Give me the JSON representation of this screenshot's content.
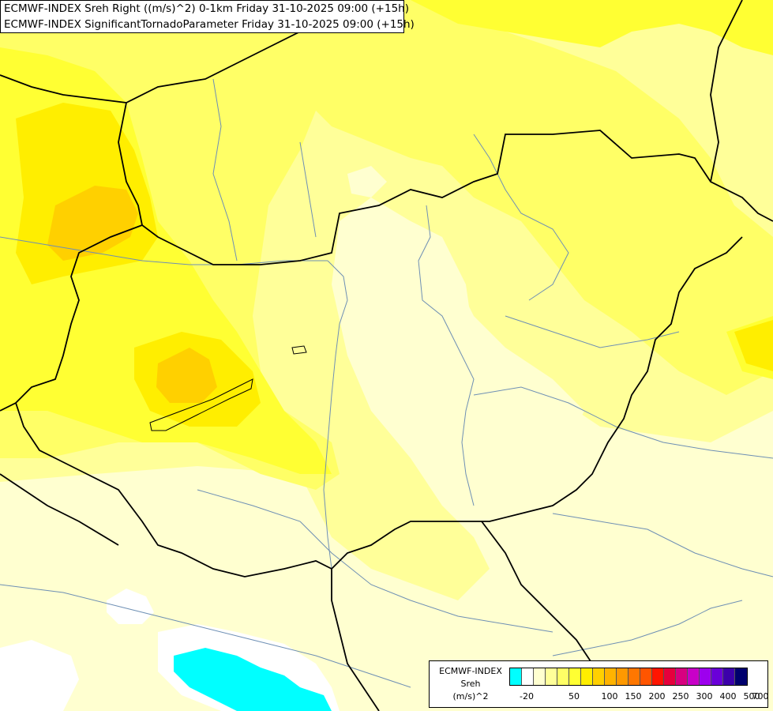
{
  "title": {
    "line1": "ECMWF-INDEX Sreh Right ((m/s)^2) 0-1km Friday 31-10-2025 09:00 (+15h)",
    "line2": "ECMWF-INDEX SignificantTornadoParameter Friday 31-10-2025 09:00 (+15h)"
  },
  "legend": {
    "source": "ECMWF-INDEX",
    "param": "Sreh",
    "unit": "(m/s)^2",
    "colors": [
      "#00ffff",
      "#ffffff",
      "#ffffd0",
      "#ffff99",
      "#ffff66",
      "#ffff33",
      "#ffee00",
      "#ffd000",
      "#ffb300",
      "#ff9900",
      "#ff7700",
      "#ff5500",
      "#ff1500",
      "#e6003c",
      "#d80080",
      "#c800c8",
      "#9d00ee",
      "#6a00d8",
      "#3c00aa",
      "#00006e"
    ],
    "ticks": [
      "-20",
      "50",
      "100",
      "150",
      "200",
      "250",
      "300",
      "400",
      "500",
      "700"
    ]
  },
  "map_colors": {
    "bg": "#ffffd0",
    "light": "#ffff99",
    "mid": "#ffff66",
    "yellow": "#ffff33",
    "strong": "#ffee00",
    "dark": "#ffd000",
    "white": "#ffffff",
    "cyan": "#00ffff",
    "river": "#6e8fb4",
    "border": "#000000"
  }
}
